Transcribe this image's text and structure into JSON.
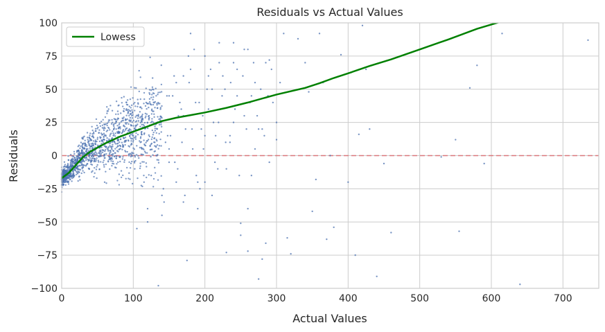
{
  "chart_data": {
    "type": "scatter",
    "title": "Residuals vs Actual Values",
    "xlabel": "Actual Values",
    "ylabel": "Residuals",
    "xlim": [
      0,
      750
    ],
    "ylim": [
      -100,
      100
    ],
    "x_ticks": [
      0,
      100,
      200,
      300,
      400,
      500,
      600,
      700
    ],
    "y_ticks": [
      -100,
      -75,
      -50,
      -25,
      0,
      25,
      50,
      75,
      100
    ],
    "x_tick_labels": [
      "0",
      "100",
      "200",
      "300",
      "400",
      "500",
      "600",
      "700"
    ],
    "y_tick_labels": [
      "−100",
      "−75",
      "−50",
      "−25",
      "0",
      "25",
      "50",
      "75",
      "100"
    ],
    "grid": true,
    "legend": {
      "position": "top-left",
      "entries": [
        "Lowess"
      ]
    },
    "reference_line": {
      "y": 0,
      "style": "dashed",
      "color": "#d9777a"
    },
    "colors": {
      "points": "#4c72b0",
      "lowess": "#008000",
      "reference": "#d9777a",
      "grid": "#cccccc",
      "axes": "#cccccc"
    },
    "series": [
      {
        "type": "line",
        "name": "Lowess",
        "x": [
          0,
          10,
          20,
          30,
          40,
          50,
          60,
          80,
          100,
          120,
          140,
          160,
          180,
          200,
          230,
          260,
          300,
          340,
          360,
          380,
          400,
          430,
          460,
          500,
          540,
          580,
          620
        ],
        "y": [
          -17,
          -13,
          -7,
          -1,
          3,
          6,
          9,
          14,
          18,
          22,
          26,
          28.5,
          30.5,
          32.5,
          36,
          40,
          46,
          51,
          54.5,
          58.5,
          62,
          67.5,
          72.5,
          80,
          87.5,
          95.5,
          102
        ]
      },
      {
        "type": "scatter",
        "name": "",
        "x": [
          105,
          135,
          140,
          145,
          150,
          160,
          165,
          170,
          175,
          180,
          185,
          190,
          195,
          200,
          205,
          210,
          215,
          220,
          225,
          230,
          235,
          240,
          245,
          250,
          255,
          260,
          265,
          270,
          275,
          280,
          285,
          290,
          300,
          310,
          315,
          320,
          330,
          340,
          345,
          350,
          355,
          360,
          365,
          370,
          375,
          380,
          390,
          400,
          410,
          415,
          420,
          425,
          430,
          440,
          450,
          460,
          530,
          550,
          555,
          570,
          580,
          590,
          615,
          640,
          735,
          120,
          130,
          150,
          170,
          190,
          200,
          210,
          230,
          240,
          260,
          270,
          280,
          290,
          250,
          95,
          98,
          102,
          108,
          112,
          118,
          125,
          128,
          133,
          138,
          142,
          148,
          155,
          158,
          163,
          168,
          172,
          178,
          182,
          188,
          192,
          198,
          205,
          212,
          218,
          222,
          228,
          235,
          245,
          255,
          265,
          275,
          285,
          295,
          305,
          110,
          115,
          122,
          127,
          132,
          137,
          143,
          147,
          152,
          157,
          162,
          167,
          173,
          177,
          183,
          187,
          193,
          197,
          203,
          208,
          214,
          219,
          224,
          229,
          236,
          242,
          248,
          253,
          258,
          263,
          268,
          273,
          278,
          283,
          288,
          293,
          300,
          140,
          160,
          180,
          200,
          220,
          240,
          260,
          120,
          150,
          170
        ],
        "y": [
          -55,
          -98,
          -30,
          10,
          5,
          -20,
          40,
          -35,
          -79,
          92,
          80,
          -40,
          20,
          -20,
          35,
          -30,
          15,
          70,
          60,
          -73,
          10,
          85,
          45,
          -51,
          80,
          -72,
          -15,
          55,
          -93,
          -78,
          -66,
          72,
          12,
          92,
          -62,
          -74,
          88,
          70,
          48,
          -42,
          -18,
          92,
          55,
          -63,
          0,
          -54,
          76,
          -20,
          -75,
          16,
          98,
          65,
          20,
          -91,
          -6,
          -58,
          -1,
          12,
          -57,
          51,
          68,
          -6,
          92,
          -97,
          87,
          -40,
          10,
          -5,
          30,
          -20,
          15,
          50,
          -10,
          25,
          -40,
          5,
          20,
          -5,
          -60,
          15,
          30,
          -10,
          20,
          5,
          40,
          -15,
          25,
          0,
          35,
          -25,
          15,
          45,
          -5,
          30,
          10,
          -30,
          55,
          20,
          -15,
          40,
          5,
          60,
          25,
          -10,
          35,
          50,
          15,
          65,
          30,
          45,
          20,
          70,
          40,
          55,
          10,
          -20,
          30,
          50,
          0,
          25,
          -35,
          45,
          15,
          60,
          -10,
          35,
          20,
          75,
          5,
          40,
          -25,
          30,
          50,
          65,
          -5,
          25,
          45,
          10,
          55,
          35,
          -15,
          60,
          20,
          40,
          70,
          30,
          50,
          15,
          45,
          65,
          25,
          -45,
          55,
          65,
          75,
          85,
          70,
          80,
          -50,
          45,
          60
        ]
      }
    ]
  }
}
